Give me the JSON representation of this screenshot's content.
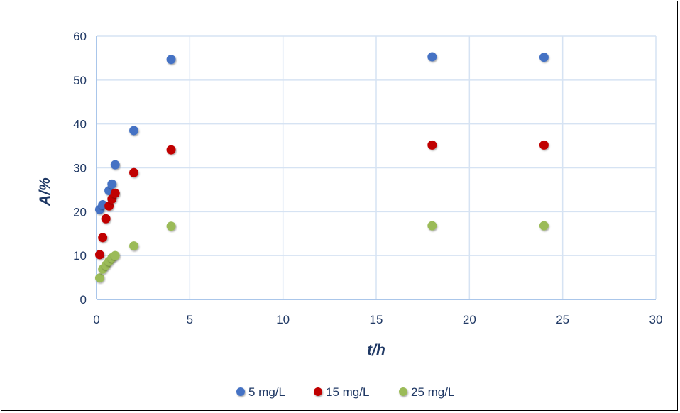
{
  "chart_data": {
    "type": "scatter",
    "title": "",
    "xlabel_italic": "t",
    "xlabel_unit": "/h",
    "ylabel_italic": "A",
    "ylabel_unit": "/%",
    "xlim": [
      0,
      30
    ],
    "ylim": [
      0,
      60
    ],
    "xticks": [
      "0",
      "5",
      "10",
      "15",
      "20",
      "25",
      "30"
    ],
    "yticks": [
      "0",
      "10",
      "20",
      "30",
      "40",
      "50",
      "60"
    ],
    "grid": true,
    "legend_position": "bottom",
    "series": [
      {
        "name": "5 mg/L",
        "color": "#4472c4",
        "x": [
          0.17,
          0.33,
          0.67,
          0.83,
          1,
          2,
          4,
          18,
          24
        ],
        "y": [
          20.5,
          21.6,
          24.8,
          26.3,
          30.7,
          38.5,
          54.7,
          55.3,
          55.2
        ]
      },
      {
        "name": "15 mg/L",
        "color": "#c00000",
        "x": [
          0.17,
          0.33,
          0.5,
          0.67,
          0.83,
          1,
          2,
          4,
          18,
          24
        ],
        "y": [
          10.2,
          14.1,
          18.4,
          21.3,
          22.9,
          24.2,
          28.9,
          34.1,
          35.2,
          35.2
        ]
      },
      {
        "name": "25 mg/L",
        "color": "#9bbb59",
        "x": [
          0.17,
          0.33,
          0.5,
          0.67,
          0.83,
          1,
          2,
          4,
          18,
          24
        ],
        "y": [
          4.9,
          6.9,
          7.8,
          8.7,
          9.5,
          10.0,
          12.2,
          16.7,
          16.8,
          16.8
        ]
      }
    ]
  }
}
